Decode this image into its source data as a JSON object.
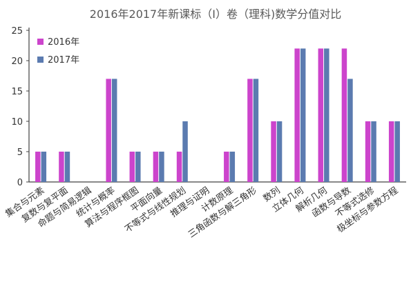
{
  "chart_data": {
    "type": "bar",
    "title": "2016年2017年新课标（Ⅰ）卷（理科)数学分值对比",
    "xlabel": "",
    "ylabel": "",
    "ylim": [
      0,
      25
    ],
    "yticks": [
      0,
      5,
      10,
      15,
      20,
      25
    ],
    "grid": false,
    "legend_position": "top-left",
    "categories": [
      "集合与元素",
      "复数与复平面",
      "命题与简易逻辑",
      "统计与概率",
      "算法与程序框图",
      "平面向量",
      "不等式与线性规划",
      "推理与证明",
      "计数原理",
      "三角函数与解三角形",
      "数列",
      "立体几何",
      "解析几何",
      "函数与导数",
      "不等式选修",
      "极坐标与参数方程"
    ],
    "series": [
      {
        "name": "2016年",
        "color": "#cc44cc",
        "values": [
          5,
          5,
          0,
          17,
          5,
          5,
          5,
          0,
          5,
          17,
          10,
          22,
          22,
          22,
          10,
          10
        ]
      },
      {
        "name": "2017年",
        "color": "#5b7bb0",
        "values": [
          5,
          5,
          0,
          17,
          5,
          5,
          10,
          0,
          5,
          17,
          10,
          22,
          22,
          17,
          10,
          10
        ]
      }
    ]
  }
}
